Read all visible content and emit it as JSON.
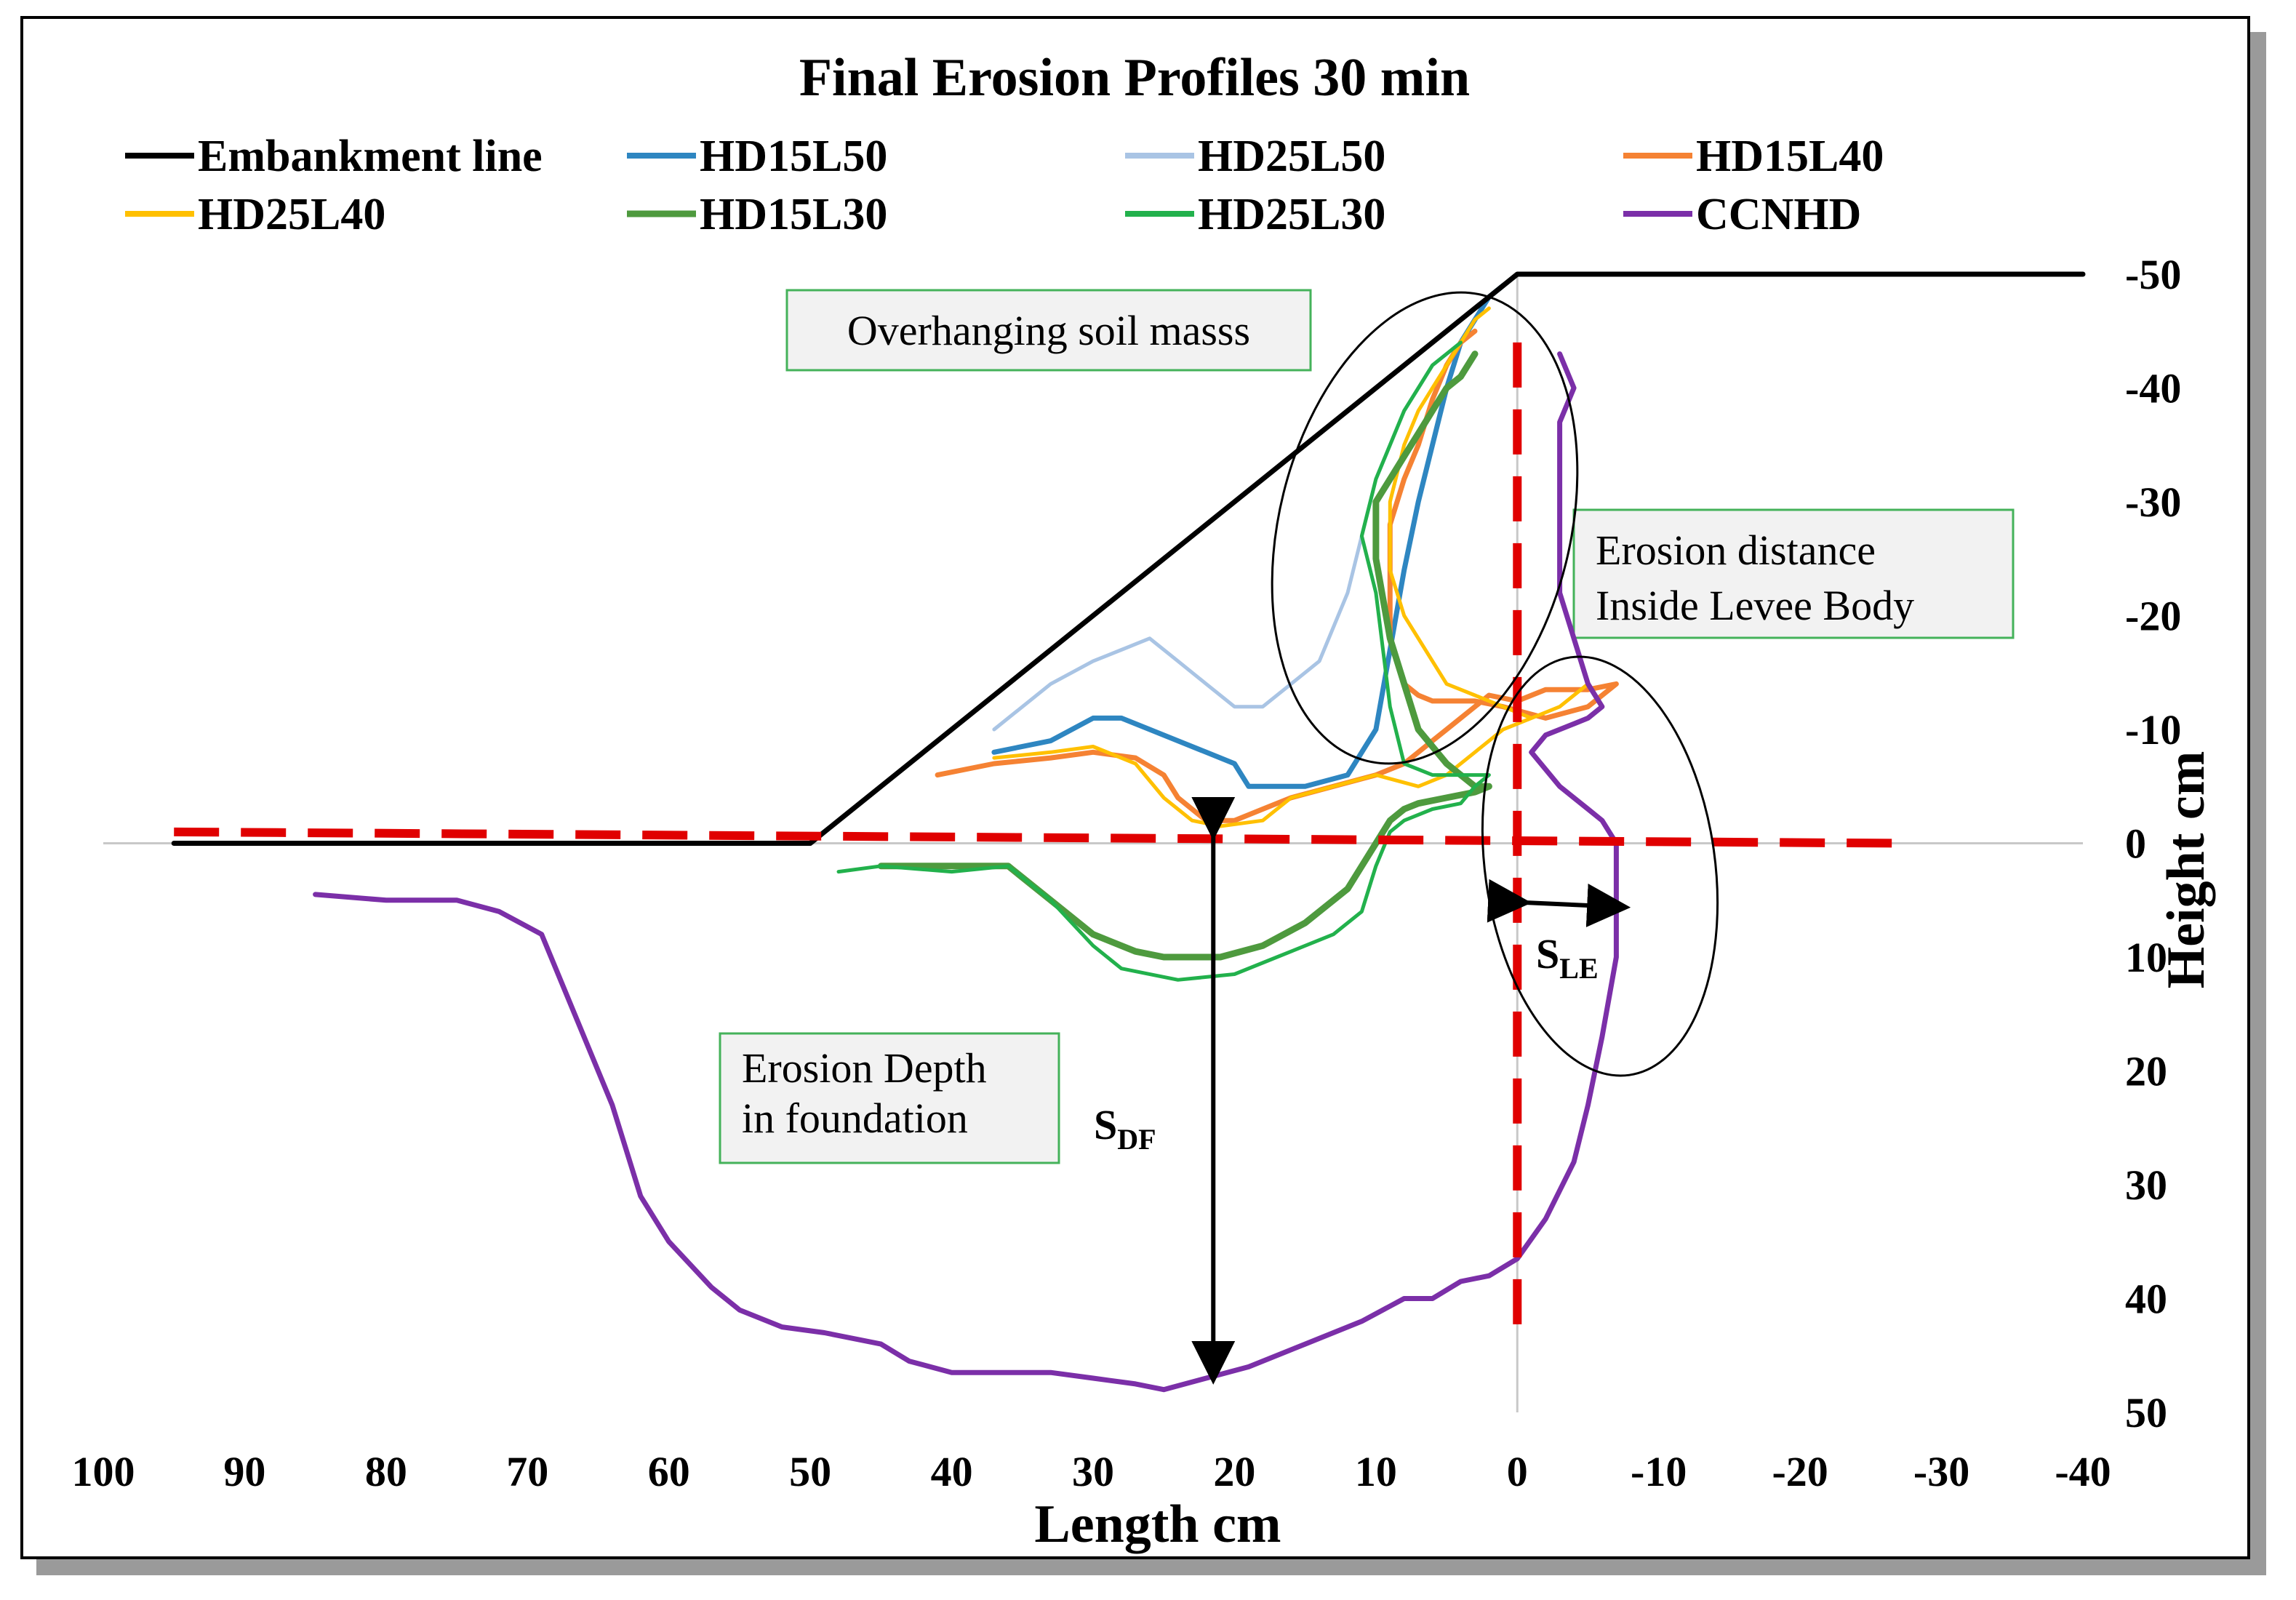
{
  "chart_data": {
    "type": "line",
    "title": "Final Erosion Profiles 30 min",
    "xlabel": "Length cm",
    "ylabel": "Height cm",
    "xlim": [
      100,
      -40
    ],
    "ylim": [
      -50,
      50
    ],
    "y_reversed": true,
    "xticks": [
      "100",
      "90",
      "80",
      "70",
      "60",
      "50",
      "40",
      "30",
      "20",
      "10",
      "0",
      "-10",
      "-20",
      "-30",
      "-40"
    ],
    "yticks": [
      "-50",
      "-40",
      "-30",
      "-20",
      "-10",
      "0",
      "10",
      "20",
      "30",
      "40",
      "50"
    ],
    "legend_position": "top",
    "grid": false,
    "series": [
      {
        "name": "Embankment line",
        "color": "#000000",
        "width": 7,
        "x": [
          95,
          50,
          0,
          -40
        ],
        "y": [
          0,
          0,
          -50,
          -50
        ]
      },
      {
        "name": "HD15L50",
        "color": "#2E86C1",
        "width": 7,
        "x": [
          37,
          33,
          30,
          28,
          26,
          22,
          20,
          19,
          17,
          15,
          12,
          10,
          9,
          8,
          7,
          6,
          5,
          4,
          3,
          2,
          1
        ],
        "y": [
          -8,
          -9,
          -11,
          -11,
          -10,
          -8,
          -7,
          -5,
          -5,
          -5,
          -6,
          -10,
          -17,
          -24,
          -30,
          -35,
          -40,
          -44,
          -46,
          -48,
          -49
        ]
      },
      {
        "name": "HD25L50",
        "color": "#A9C4E4",
        "width": 5,
        "x": [
          37,
          33,
          30,
          28,
          26,
          24,
          22,
          20,
          18,
          16,
          14,
          12,
          11,
          10,
          9,
          8,
          7,
          6,
          5,
          4
        ],
        "y": [
          -10,
          -14,
          -16,
          -17,
          -18,
          -16,
          -14,
          -12,
          -12,
          -14,
          -16,
          -22,
          -27,
          -32,
          -35,
          -38,
          -40,
          -42,
          -43,
          -44
        ]
      },
      {
        "name": "HD15L40",
        "color": "#F58233",
        "width": 7,
        "x": [
          41,
          37,
          33,
          30,
          27,
          25,
          24,
          22,
          20,
          18,
          16,
          13,
          10,
          8,
          7,
          6,
          5,
          4,
          3,
          2,
          0,
          -2,
          -5,
          -7,
          -5,
          -2,
          1,
          3,
          6,
          7,
          8,
          9,
          9,
          8,
          7,
          6,
          5,
          4,
          3
        ],
        "y": [
          -6,
          -7,
          -7.5,
          -8,
          -7.5,
          -6,
          -4,
          -2,
          -2,
          -3,
          -4,
          -5,
          -6,
          -7,
          -8,
          -9,
          -10,
          -11,
          -12,
          -13,
          -12.5,
          -13.5,
          -13.5,
          -14,
          -12,
          -11,
          -12,
          -12.5,
          -12.5,
          -13,
          -14,
          -18,
          -28,
          -32,
          -35,
          -39,
          -42,
          -44,
          -45
        ]
      },
      {
        "name": "HD25L40",
        "color": "#FFC000",
        "width": 5,
        "x": [
          37,
          33,
          30,
          27,
          25,
          23,
          21,
          18,
          16,
          13,
          10,
          7,
          5,
          3,
          1,
          -1,
          -3,
          -5,
          -3,
          -1,
          1,
          3,
          5,
          6,
          7,
          8,
          9,
          9,
          8,
          7,
          6,
          5,
          4,
          3,
          2
        ],
        "y": [
          -7.5,
          -8,
          -8.5,
          -7,
          -4,
          -2,
          -1.5,
          -2,
          -4,
          -5,
          -6,
          -5,
          -6,
          -8,
          -10,
          -11,
          -12,
          -14,
          -12,
          -11,
          -12,
          -13,
          -14,
          -16,
          -18,
          -20,
          -24,
          -30,
          -35,
          -38,
          -40,
          -42,
          -44,
          -46,
          -47
        ]
      },
      {
        "name": "HD15L30",
        "color": "#4E9A3E",
        "width": 9,
        "x": [
          45,
          40,
          36,
          33,
          30,
          27,
          25,
          21,
          18,
          15,
          12,
          10,
          9,
          8,
          7,
          5,
          3,
          2,
          3,
          5,
          7,
          9,
          10,
          10,
          10,
          9,
          8,
          7,
          6,
          5,
          4,
          3
        ],
        "y": [
          2,
          2,
          2,
          5,
          8,
          9.5,
          10,
          10,
          9,
          7,
          4,
          0,
          -2,
          -3,
          -3.5,
          -4,
          -4.5,
          -5,
          -5,
          -7,
          -10,
          -18,
          -25,
          -28,
          -30,
          -32,
          -34,
          -36,
          -38,
          -40,
          -41,
          -43
        ]
      },
      {
        "name": "HD25L30",
        "color": "#22B14C",
        "width": 5,
        "x": [
          48,
          45,
          40,
          36,
          33,
          30,
          28,
          24,
          20,
          17,
          13,
          11,
          10,
          9,
          8,
          6,
          4,
          3,
          2,
          3,
          6,
          8,
          9,
          10,
          11,
          10,
          9,
          8,
          7,
          6,
          5,
          4
        ],
        "y": [
          2.5,
          2,
          2.5,
          2,
          5,
          9,
          11,
          12,
          11.5,
          10,
          8,
          6,
          2,
          -1,
          -2,
          -3,
          -3.5,
          -5,
          -6,
          -6,
          -6,
          -7,
          -12,
          -22,
          -27,
          -32,
          -35,
          -38,
          -40,
          -42,
          -43,
          -44
        ]
      },
      {
        "name": "CCNHD",
        "color": "#7B2FA8",
        "width": 7,
        "x": [
          85,
          80,
          75,
          72,
          69,
          67,
          64,
          62,
          60,
          57,
          55,
          52,
          49,
          45,
          43,
          40,
          37,
          33,
          30,
          27,
          25,
          22,
          19,
          15,
          11,
          8,
          6,
          4,
          2,
          0,
          -2,
          -4,
          -5,
          -6,
          -7,
          -7,
          -7,
          -7,
          -6,
          -5,
          -3,
          -1,
          -2,
          -4,
          -5,
          -6,
          -5,
          -4,
          -3,
          -3,
          -3,
          -4,
          -3
        ],
        "y": [
          4.5,
          5,
          5,
          6,
          8,
          14,
          23,
          31,
          35,
          39,
          41,
          42.5,
          43,
          44,
          45.5,
          46.5,
          46.5,
          46.5,
          47,
          47.5,
          48,
          47,
          46,
          44,
          42,
          40,
          40,
          38.5,
          38,
          36.5,
          33,
          28,
          23,
          17,
          10,
          5,
          1,
          0,
          -2,
          -3,
          -5,
          -8,
          -9.5,
          -10.5,
          -11,
          -12,
          -14,
          -18,
          -22,
          -30,
          -37,
          -40,
          -43
        ]
      }
    ],
    "reference_lines": {
      "color": "#E00000",
      "horizontal": {
        "x": [
          95,
          -27
        ],
        "y": [
          -1,
          0
        ]
      },
      "vertical": {
        "x": [
          0,
          0
        ],
        "y": [
          -44,
          43
        ]
      }
    },
    "annotations": [
      {
        "text": "Overhanging soil masss"
      },
      {
        "text_lines": [
          "Erosion distance",
          "Inside Levee Body"
        ]
      },
      {
        "text_lines": [
          "Erosion Depth",
          "in foundation"
        ]
      },
      {
        "main": "S",
        "subscript": "DF"
      },
      {
        "main": "S",
        "subscript": "LE"
      }
    ]
  }
}
